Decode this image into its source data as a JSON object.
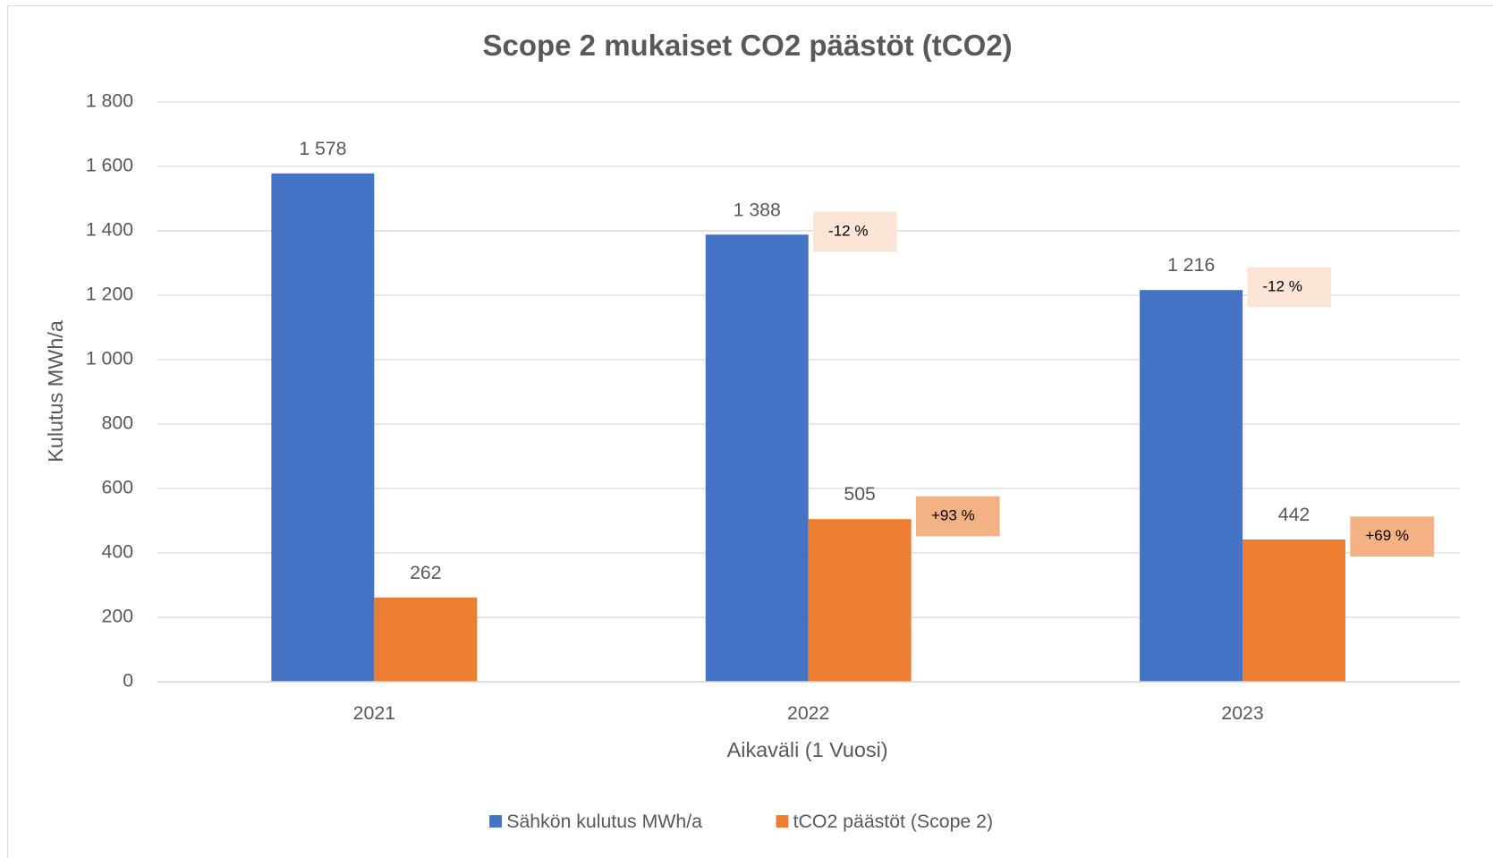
{
  "chart_data": {
    "type": "bar",
    "title": "Scope 2 mukaiset CO2 päästöt (tCO2)",
    "x_label": "Aikaväli (1 Vuosi)",
    "y_label": "Kulutus MWh/a",
    "categories": [
      "2021",
      "2022",
      "2023"
    ],
    "series": [
      {
        "name": "Sähkön kulutus MWh/a",
        "color": "#4472c4",
        "values": [
          1578,
          1388,
          1216
        ],
        "value_labels": [
          "1 578",
          "1 388",
          "1 216"
        ],
        "change_labels": [
          null,
          "-12 %",
          "-12 %"
        ],
        "change_color": "#fce4d6"
      },
      {
        "name": "tCO2 päästöt (Scope 2)",
        "color": "#ed7d31",
        "values": [
          262,
          505,
          442
        ],
        "change_labels": [
          null,
          "+93 %",
          "+69 %"
        ],
        "change_color": "#f4b183"
      }
    ],
    "ylim": [
      0,
      1800
    ],
    "yticks": [
      0,
      200,
      400,
      600,
      800,
      {
        "value": 1000,
        "label": "1 000"
      },
      {
        "value": 1200,
        "label": "1 200"
      },
      {
        "value": 1400,
        "label": "1 400"
      },
      {
        "value": 1600,
        "label": "1 600"
      },
      {
        "value": 1800,
        "label": "1 800"
      }
    ],
    "grid": true,
    "legend": "bottom"
  }
}
